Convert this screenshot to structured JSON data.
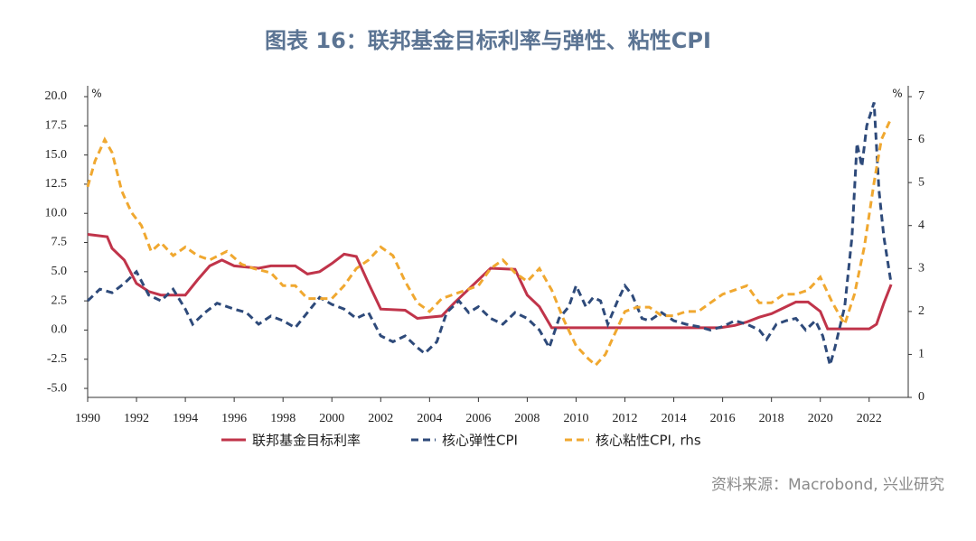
{
  "chart_data": {
    "type": "line",
    "title": "图表 16：联邦基金目标利率与弹性、粘性CPI",
    "source": "资料来源：Macrobond, 兴业研究",
    "y_unit": "%",
    "y2_unit": "%",
    "xlim": [
      1990,
      2023.6
    ],
    "xticks": [
      1990,
      1992,
      1994,
      1996,
      1998,
      2000,
      2002,
      2004,
      2006,
      2008,
      2010,
      2012,
      2014,
      2016,
      2018,
      2020,
      2022
    ],
    "ylim": [
      -5.77,
      20
    ],
    "yticks": [
      {
        "value": -5,
        "label": "-5.0"
      },
      -2.5,
      {
        "value": 0,
        "label": "0.0"
      },
      2.5,
      {
        "value": 5,
        "label": "5.0"
      },
      7.5,
      {
        "value": 10,
        "label": "10.0"
      },
      12.5,
      {
        "value": 15,
        "label": "15.0"
      },
      17.5,
      {
        "value": 20,
        "label": "20.0"
      }
    ],
    "y2lim": [
      0,
      7
    ],
    "y2ticks": [
      0,
      1,
      2,
      3,
      4,
      5,
      6,
      7
    ],
    "series": [
      {
        "name": "联邦基金目标利率",
        "color": "#c0344a",
        "dash": false,
        "x": [
          1990,
          1990.8,
          1991,
          1991.5,
          1992,
          1992.5,
          1993,
          1994,
          1994.5,
          1995,
          1995.5,
          1996,
          1997,
          1997.5,
          1998.5,
          1999,
          1999.5,
          2000,
          2000.5,
          2001,
          2001.5,
          2002,
          2003,
          2003.5,
          2004.5,
          2005,
          2005.5,
          2006,
          2006.5,
          2007.5,
          2008,
          2008.5,
          2009,
          2015.9,
          2016.5,
          2017,
          2017.5,
          2018,
          2018.5,
          2019,
          2019.5,
          2020,
          2020.3,
          2022,
          2022.3,
          2022.6,
          2022.9
        ],
        "values": [
          8.2,
          8.0,
          7.0,
          6.0,
          4.0,
          3.3,
          3.0,
          3.0,
          4.3,
          5.5,
          6.0,
          5.5,
          5.3,
          5.5,
          5.5,
          4.8,
          5.0,
          5.7,
          6.5,
          6.3,
          4.0,
          1.8,
          1.7,
          1.0,
          1.2,
          2.3,
          3.3,
          4.3,
          5.3,
          5.2,
          3.0,
          2.0,
          0.2,
          0.2,
          0.4,
          0.7,
          1.1,
          1.4,
          1.9,
          2.4,
          2.4,
          1.6,
          0.1,
          0.1,
          0.5,
          2.3,
          3.9
        ]
      },
      {
        "name": "核心弹性CPI",
        "color": "#2e4a7a",
        "dash": true,
        "x": [
          1990,
          1990.5,
          1991,
          1991.5,
          1992,
          1992.5,
          1993,
          1993.5,
          1994,
          1994.3,
          1994.8,
          1995.3,
          1996,
          1996.5,
          1997,
          1997.5,
          1998,
          1998.5,
          1999,
          1999.5,
          2000,
          2000.5,
          2001,
          2001.5,
          2002,
          2002.5,
          2003,
          2003.5,
          2003.8,
          2004.3,
          2004.7,
          2005.2,
          2005.6,
          2006,
          2006.5,
          2007,
          2007.5,
          2008,
          2008.5,
          2008.9,
          2009.3,
          2009.7,
          2010,
          2010.4,
          2010.7,
          2011,
          2011.3,
          2011.7,
          2012,
          2012.3,
          2012.7,
          2013,
          2013.5,
          2014,
          2014.5,
          2015,
          2015.5,
          2016,
          2016.5,
          2017,
          2017.5,
          2017.8,
          2018.2,
          2018.6,
          2019,
          2019.4,
          2019.8,
          2020.1,
          2020.4,
          2020.6,
          2021,
          2021.3,
          2021.5,
          2021.7,
          2021.9,
          2022.2,
          2022.4,
          2022.6,
          2022.9
        ],
        "values": [
          2.5,
          3.5,
          3.2,
          4.0,
          5.0,
          3.0,
          2.5,
          3.5,
          1.8,
          0.5,
          1.5,
          2.3,
          1.8,
          1.5,
          0.5,
          1.2,
          0.8,
          0.2,
          1.5,
          2.8,
          2.2,
          1.8,
          1.0,
          1.5,
          -0.5,
          -1.0,
          -0.5,
          -1.5,
          -2.0,
          -1.0,
          1.5,
          2.5,
          1.5,
          2.0,
          1.0,
          0.5,
          1.5,
          1.0,
          0.0,
          -1.5,
          1.0,
          2.0,
          3.8,
          2.0,
          2.8,
          2.5,
          0.5,
          2.5,
          3.8,
          3.0,
          1.0,
          0.8,
          1.5,
          0.8,
          0.5,
          0.3,
          0.0,
          0.3,
          0.8,
          0.5,
          0.0,
          -0.8,
          0.5,
          0.8,
          1.0,
          0.0,
          0.8,
          -0.5,
          -3.0,
          -1.5,
          2.0,
          8.0,
          16.0,
          14.0,
          17.5,
          19.5,
          12.0,
          8.0,
          4.0
        ]
      },
      {
        "name": "核心粘性CPI, rhs",
        "color": "#f0a830",
        "dash": true,
        "axis": "y2",
        "x": [
          1990,
          1990.3,
          1990.7,
          1991,
          1991.4,
          1991.8,
          1992.2,
          1992.6,
          1993,
          1993.5,
          1994,
          1994.5,
          1995,
          1995.7,
          1996.3,
          1996.8,
          1997.5,
          1998,
          1998.5,
          1999,
          1999.5,
          2000,
          2000.5,
          2001,
          2001.5,
          2002,
          2002.5,
          2003,
          2003.5,
          2004,
          2004.5,
          2005,
          2005.5,
          2006,
          2006.5,
          2007,
          2007.5,
          2008,
          2008.5,
          2009,
          2009.5,
          2010,
          2010.5,
          2010.8,
          2011.2,
          2011.6,
          2012,
          2012.5,
          2013,
          2013.5,
          2014,
          2014.5,
          2015,
          2015.5,
          2016,
          2016.5,
          2017,
          2017.5,
          2018,
          2018.5,
          2019,
          2019.5,
          2020,
          2020.5,
          2021,
          2021.4,
          2021.8,
          2022.2,
          2022.5,
          2022.9
        ],
        "values": [
          4.9,
          5.5,
          6.0,
          5.7,
          4.8,
          4.3,
          4.0,
          3.4,
          3.6,
          3.3,
          3.5,
          3.3,
          3.2,
          3.4,
          3.1,
          3.0,
          2.9,
          2.6,
          2.6,
          2.3,
          2.3,
          2.3,
          2.6,
          3.0,
          3.2,
          3.5,
          3.3,
          2.7,
          2.2,
          2.0,
          2.3,
          2.4,
          2.5,
          2.6,
          3.0,
          3.2,
          2.9,
          2.7,
          3.0,
          2.5,
          1.8,
          1.2,
          0.9,
          0.75,
          1.0,
          1.5,
          2.0,
          2.1,
          2.1,
          1.9,
          1.9,
          2.0,
          2.0,
          2.2,
          2.4,
          2.5,
          2.6,
          2.2,
          2.2,
          2.4,
          2.4,
          2.5,
          2.8,
          2.2,
          1.7,
          2.4,
          3.5,
          5.0,
          6.0,
          6.5
        ]
      }
    ]
  }
}
